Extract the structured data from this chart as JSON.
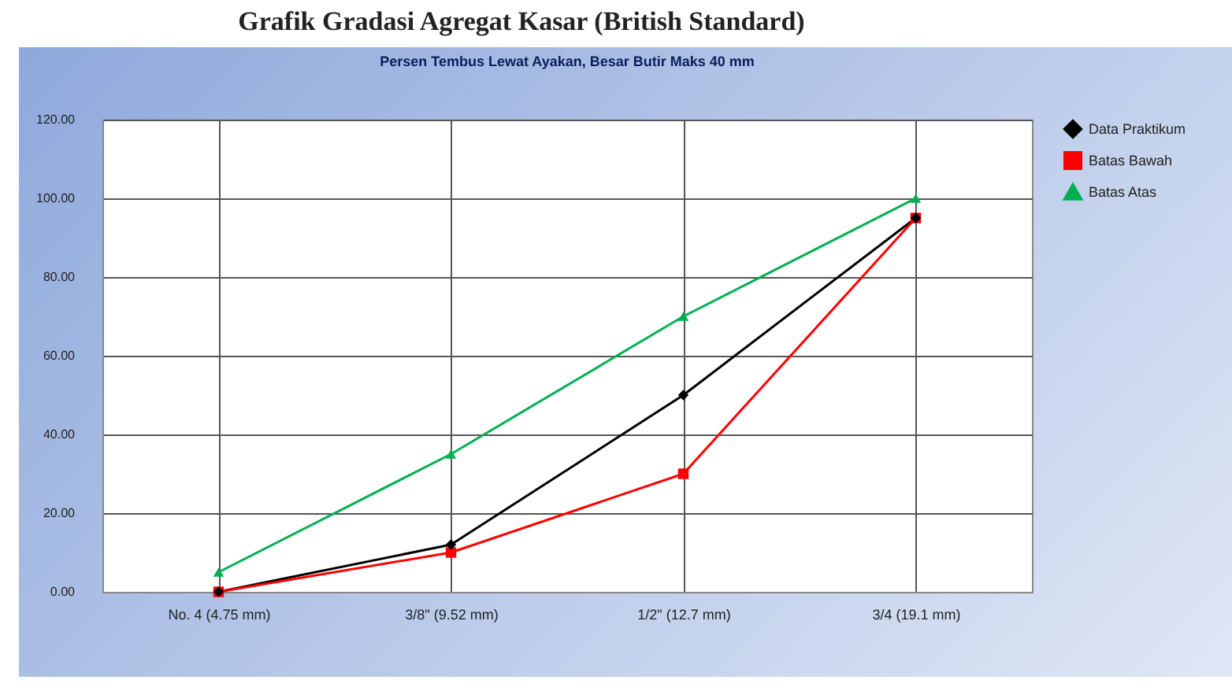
{
  "chart_data": {
    "type": "line",
    "title": "Grafik Gradasi Agregat Kasar (British Standard)",
    "subtitle": "Persen Tembus Lewat Ayakan, Besar Butir Maks 40 mm",
    "categories": [
      "No. 4 (4.75 mm)",
      "3/8\" (9.52 mm)",
      "1/2\" (12.7 mm)",
      "3/4 (19.1 mm)"
    ],
    "series": [
      {
        "name": "Data Praktikum",
        "color": "#000000",
        "marker": "diamond",
        "values": [
          0,
          12,
          50,
          95
        ]
      },
      {
        "name": "Batas Bawah",
        "color": "#ff0000",
        "marker": "square",
        "values": [
          0,
          10,
          30,
          95
        ]
      },
      {
        "name": "Batas Atas",
        "color": "#00b050",
        "marker": "triangle",
        "values": [
          5,
          35,
          70,
          100
        ]
      }
    ],
    "ylim": [
      0,
      120
    ],
    "yticks": [
      {
        "value": 0,
        "label": "0.00"
      },
      {
        "value": 20,
        "label": "20.00"
      },
      {
        "value": 40,
        "label": "40.00"
      },
      {
        "value": 60,
        "label": "60.00"
      },
      {
        "value": 80,
        "label": "80.00"
      },
      {
        "value": 100,
        "label": "100.00"
      },
      {
        "value": 120,
        "label": "120.00"
      }
    ],
    "grid": true,
    "legend": "right"
  }
}
